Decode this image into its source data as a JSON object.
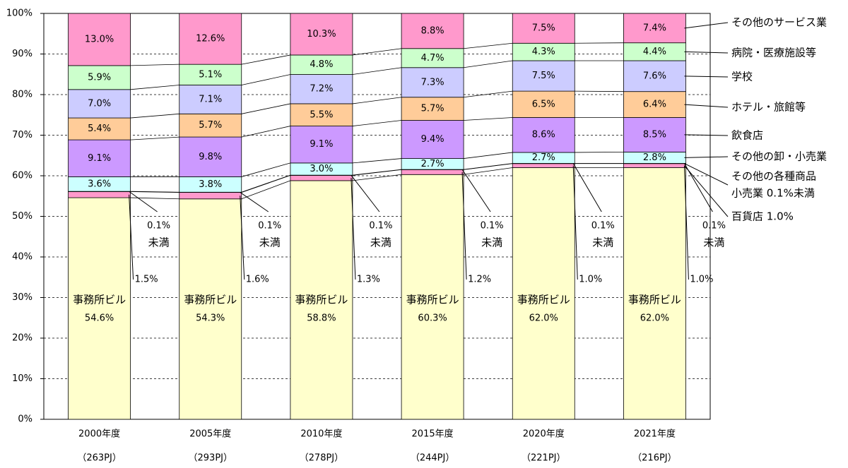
{
  "chart_data": {
    "type": "stacked_bar_percent",
    "categories": [
      "2000年度",
      "2005年度",
      "2010年度",
      "2015年度",
      "2020年度",
      "2021年度"
    ],
    "category_notes": [
      "（263PJ）",
      "（293PJ）",
      "（278PJ）",
      "（244PJ）",
      "（221PJ）",
      "（216PJ）"
    ],
    "ylim": [
      0,
      100
    ],
    "yticks": [
      {
        "value": 0,
        "label": "0%"
      },
      {
        "value": 10,
        "label": "10%"
      },
      {
        "value": 20,
        "label": "20%"
      },
      {
        "value": 30,
        "label": "30%"
      },
      {
        "value": 40,
        "label": "40%"
      },
      {
        "value": 50,
        "label": "50%"
      },
      {
        "value": 60,
        "label": "60%"
      },
      {
        "value": 70,
        "label": "70%"
      },
      {
        "value": 80,
        "label": "80%"
      },
      {
        "value": 90,
        "label": "90%"
      },
      {
        "value": 100,
        "label": "100%"
      }
    ],
    "grid": true,
    "series": [
      {
        "name": "事務所ビル",
        "color": "#ffffcc",
        "values": [
          54.6,
          54.3,
          58.8,
          60.3,
          62.0,
          62.0
        ],
        "value_labels": [
          "54.6%",
          "54.3%",
          "58.8%",
          "60.3%",
          "62.0%",
          "62.0%"
        ]
      },
      {
        "name": "百貨店 1.0%",
        "color": "#ff99cc",
        "values": [
          1.5,
          1.6,
          1.3,
          1.2,
          1.0,
          1.0
        ],
        "value_labels": [
          "1.5%",
          "1.6%",
          "1.3%",
          "1.2%",
          "1.0%",
          "1.0%"
        ]
      },
      {
        "name": [
          "その他の各種商品",
          "小売業 0.1%未満"
        ],
        "color": "#ffccff",
        "values": [
          0.05,
          0.05,
          0.05,
          0.05,
          0.05,
          0.05
        ],
        "value_labels": [
          [
            "0.1%",
            "未満"
          ],
          [
            "0.1%",
            "未満"
          ],
          [
            "0.1%",
            "未満"
          ],
          [
            "0.1%",
            "未満"
          ],
          [
            "0.1%",
            "未満"
          ],
          [
            "0.1%",
            "未満"
          ]
        ]
      },
      {
        "name": "その他の卸・小売業",
        "color": "#ccffff",
        "values": [
          3.6,
          3.8,
          3.0,
          2.7,
          2.7,
          2.8
        ],
        "value_labels": [
          "3.6%",
          "3.8%",
          "3.0%",
          "2.7%",
          "2.7%",
          "2.8%"
        ]
      },
      {
        "name": "飲食店",
        "color": "#cc99ff",
        "values": [
          9.1,
          9.8,
          9.1,
          9.4,
          8.6,
          8.5
        ],
        "value_labels": [
          "9.1%",
          "9.8%",
          "9.1%",
          "9.4%",
          "8.6%",
          "8.5%"
        ]
      },
      {
        "name": "ホテル・旅館等",
        "color": "#ffcc99",
        "values": [
          5.4,
          5.7,
          5.5,
          5.7,
          6.5,
          6.4
        ],
        "value_labels": [
          "5.4%",
          "5.7%",
          "5.5%",
          "5.7%",
          "6.5%",
          "6.4%"
        ]
      },
      {
        "name": "学校",
        "color": "#ccccff",
        "values": [
          7.0,
          7.1,
          7.2,
          7.3,
          7.5,
          7.6
        ],
        "value_labels": [
          "7.0%",
          "7.1%",
          "7.2%",
          "7.3%",
          "7.5%",
          "7.6%"
        ]
      },
      {
        "name": "病院・医療施設等",
        "color": "#ccffcc",
        "values": [
          5.9,
          5.1,
          4.8,
          4.7,
          4.3,
          4.4
        ],
        "value_labels": [
          "5.9%",
          "5.1%",
          "4.8%",
          "4.7%",
          "4.3%",
          "4.4%"
        ]
      },
      {
        "name": "その他のサービス業",
        "color": "#ff99cc",
        "values": [
          13.0,
          12.6,
          10.3,
          8.8,
          7.5,
          7.4
        ],
        "value_labels": [
          "13.0%",
          "12.6%",
          "10.3%",
          "8.8%",
          "7.5%",
          "7.4%"
        ]
      }
    ]
  }
}
